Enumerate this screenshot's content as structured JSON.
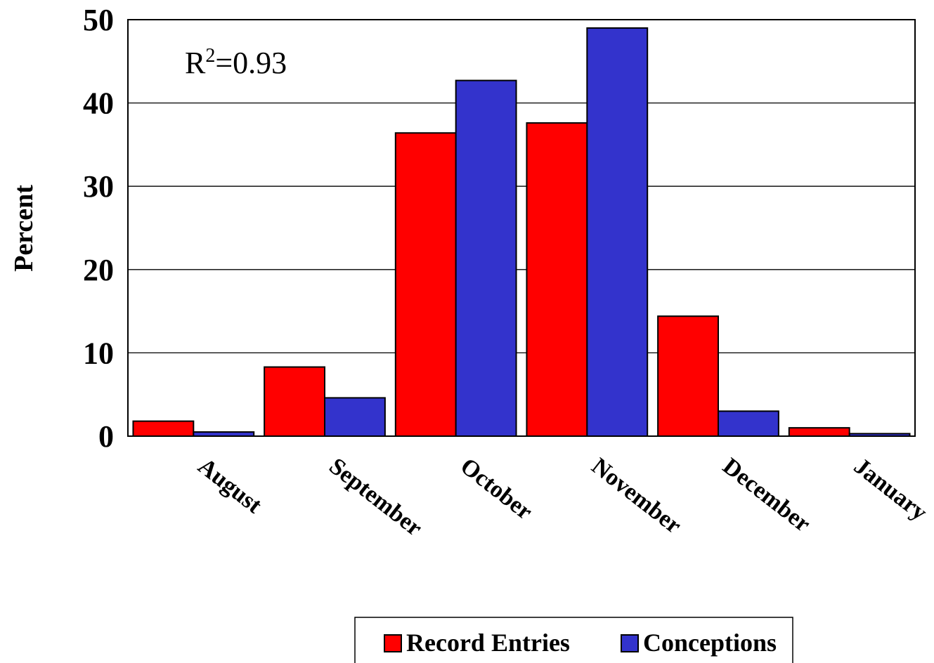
{
  "chart_data": {
    "type": "bar",
    "title": "",
    "xlabel": "",
    "ylabel": "Percent",
    "ylim": [
      0,
      50
    ],
    "yticks": [
      0,
      10,
      20,
      30,
      40,
      50
    ],
    "grid": true,
    "categories": [
      "August",
      "September",
      "October",
      "November",
      "December",
      "January"
    ],
    "series": [
      {
        "name": "Record Entries",
        "color": "#ff0000",
        "values": [
          1.8,
          8.3,
          36.4,
          37.6,
          14.4,
          1.0
        ]
      },
      {
        "name": "Conceptions",
        "color": "#3333cc",
        "values": [
          0.5,
          4.6,
          42.7,
          49.0,
          3.0,
          0.3
        ]
      }
    ],
    "annotation": {
      "base": "R",
      "sup": "2",
      "rest": "=0.93"
    },
    "legend_position": "bottom-right"
  }
}
